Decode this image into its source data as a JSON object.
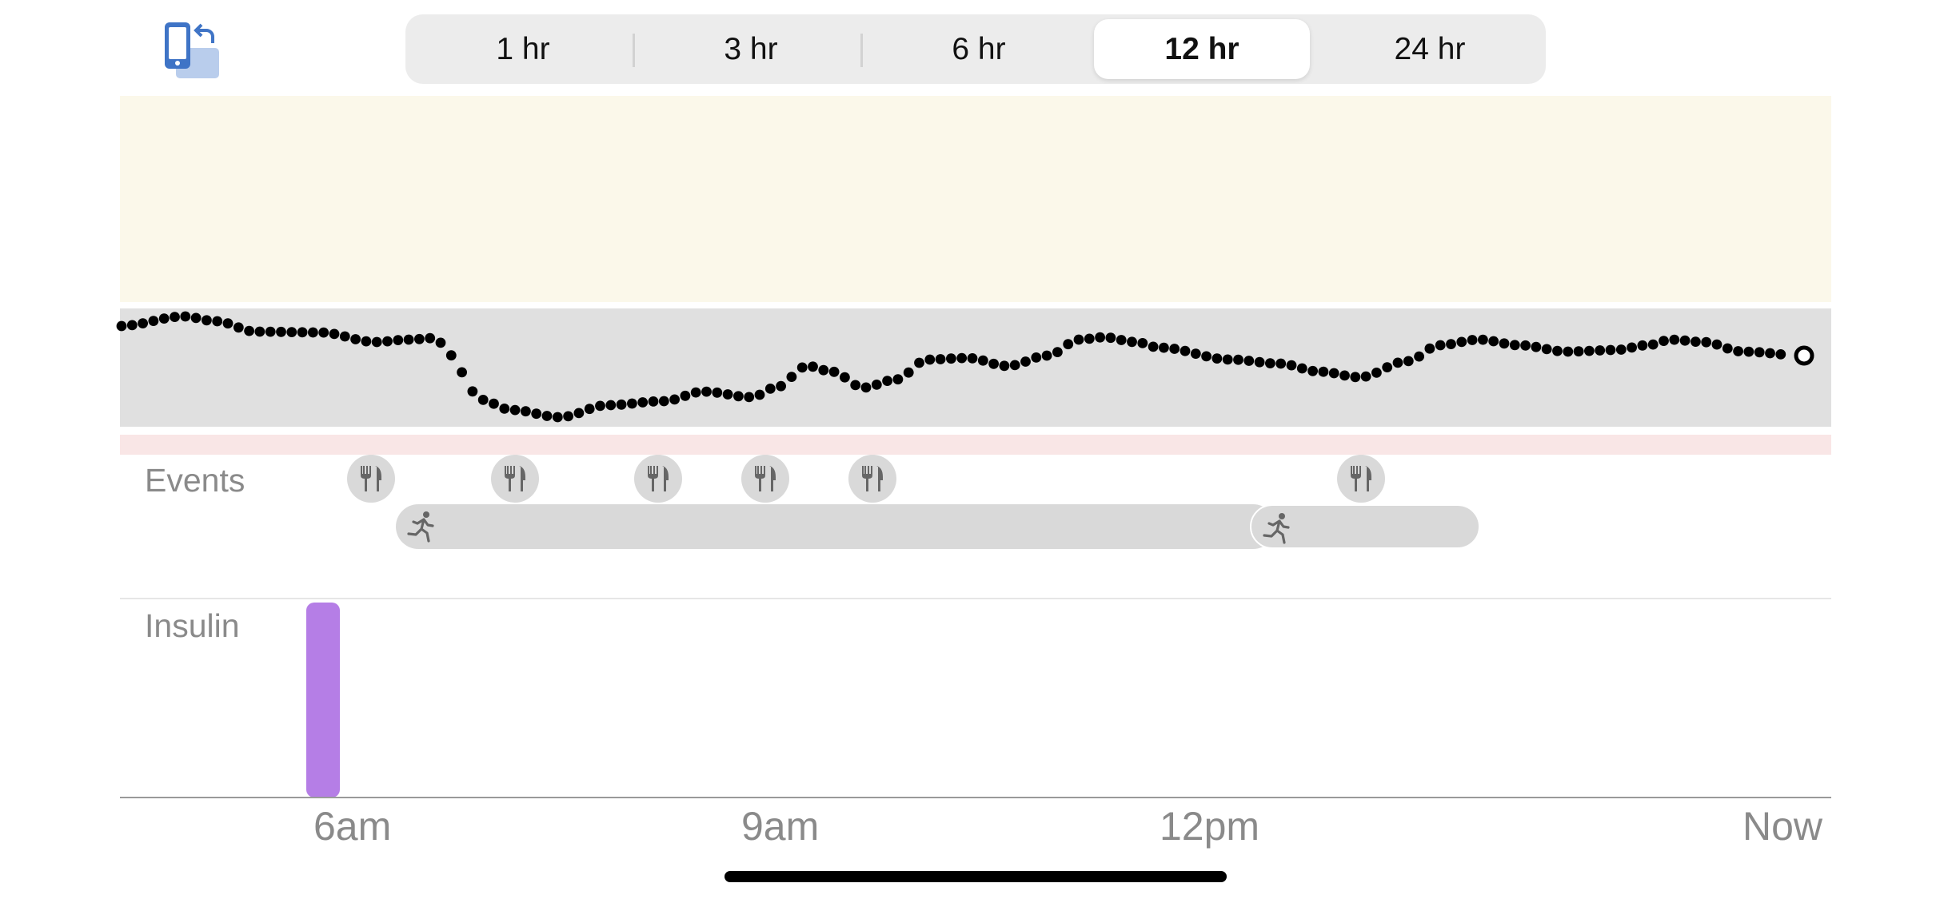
{
  "rotate_icon": "rotate-device-icon",
  "time_range": {
    "options": [
      "1 hr",
      "3 hr",
      "6 hr",
      "12 hr",
      "24 hr"
    ],
    "selected": "12 hr"
  },
  "rows": {
    "events_label": "Events",
    "insulin_label": "Insulin"
  },
  "events": {
    "meal_icon": "fork-knife-icon",
    "exercise_icon": "running-person-icon",
    "meal_count": 6,
    "exercise_count": 2
  },
  "axis": {
    "ticks": [
      "6am",
      "9am",
      "12pm",
      "Now"
    ]
  },
  "colors": {
    "high_band": "#fbf8ea",
    "target_band": "#e0e0e0",
    "low_band": "#f9e6e6",
    "insulin": "#b57ee6",
    "glucose_points": "#000000"
  }
}
